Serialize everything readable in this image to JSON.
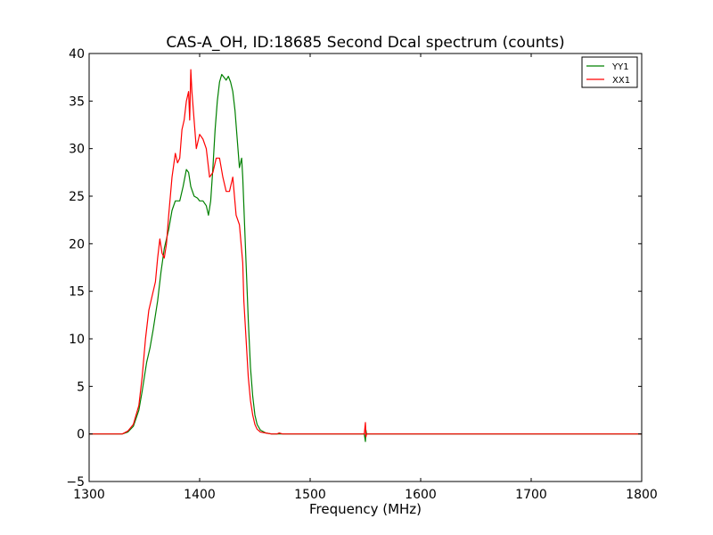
{
  "chart_data": {
    "type": "line",
    "title": "CAS-A_OH, ID:18685 Second Dcal spectrum (counts)",
    "xlabel": "Frequency (MHz)",
    "ylabel": "",
    "xlim": [
      1300,
      1800
    ],
    "ylim": [
      -5,
      40
    ],
    "xticks": [
      1300,
      1400,
      1500,
      1600,
      1700,
      1800
    ],
    "yticks": [
      -5,
      0,
      5,
      10,
      15,
      20,
      25,
      30,
      35,
      40
    ],
    "xtick_labels": [
      "1300",
      "1400",
      "1500",
      "1600",
      "1700",
      "1800"
    ],
    "ytick_labels": [
      "−5",
      "0",
      "5",
      "10",
      "15",
      "20",
      "25",
      "30",
      "35",
      "40"
    ],
    "grid": false,
    "legend_position": "top-right",
    "series": [
      {
        "name": "YY1",
        "color": "#008000",
        "x": [
          1300,
          1330,
          1335,
          1340,
          1345,
          1348,
          1352,
          1355,
          1358,
          1362,
          1365,
          1368,
          1372,
          1375,
          1378,
          1382,
          1385,
          1388,
          1390,
          1392,
          1395,
          1398,
          1400,
          1403,
          1406,
          1408,
          1410,
          1412,
          1414,
          1416,
          1418,
          1420,
          1422,
          1424,
          1426,
          1428,
          1430,
          1432,
          1434,
          1436,
          1438,
          1439,
          1440,
          1442,
          1444,
          1446,
          1448,
          1450,
          1452,
          1455,
          1460,
          1465,
          1470,
          1475,
          1480,
          1500,
          1549,
          1550,
          1550.5,
          1551,
          1552,
          1600,
          1650,
          1700,
          1750,
          1800
        ],
        "y": [
          0,
          0,
          0.2,
          0.8,
          2.5,
          4.5,
          7.5,
          9,
          11,
          14,
          17,
          19.5,
          21.5,
          23.5,
          24.5,
          24.5,
          26,
          27.8,
          27.5,
          26,
          25,
          24.8,
          24.5,
          24.5,
          24,
          23,
          24.5,
          28,
          32,
          35,
          37,
          37.8,
          37.5,
          37.2,
          37.6,
          37,
          36,
          34,
          31,
          28,
          29,
          27,
          24,
          18,
          12,
          7,
          4,
          2,
          1,
          0.4,
          0.1,
          0,
          0,
          0,
          0,
          0,
          0,
          -0.8,
          0.4,
          0,
          0,
          0,
          0,
          0,
          0,
          0
        ]
      },
      {
        "name": "XX1",
        "color": "#ff0000",
        "x": [
          1300,
          1330,
          1335,
          1340,
          1345,
          1348,
          1351,
          1354,
          1357,
          1360,
          1362,
          1364,
          1366,
          1368,
          1370,
          1372,
          1375,
          1378,
          1380,
          1382,
          1384,
          1386,
          1388,
          1390,
          1391,
          1392,
          1393,
          1395,
          1397,
          1400,
          1403,
          1406,
          1409,
          1412,
          1415,
          1418,
          1421,
          1424,
          1427,
          1430,
          1433,
          1436,
          1439,
          1440,
          1442,
          1444,
          1446,
          1448,
          1450,
          1452,
          1455,
          1460,
          1465,
          1470,
          1472,
          1475,
          1480,
          1500,
          1549,
          1550,
          1550.5,
          1551,
          1552,
          1600,
          1650,
          1700,
          1750,
          1800
        ],
        "y": [
          0,
          0,
          0.3,
          1,
          3,
          6,
          10,
          13,
          14.5,
          16,
          18.5,
          20.5,
          19,
          18.5,
          20,
          23,
          27,
          29.5,
          28.5,
          29,
          32,
          33,
          35,
          36,
          33,
          38.3,
          36,
          33,
          30,
          31.5,
          31,
          30,
          27,
          27.5,
          29,
          29,
          27,
          25.5,
          25.5,
          27,
          23,
          22,
          18,
          14,
          10,
          6,
          3.5,
          2,
          1,
          0.5,
          0.2,
          0.1,
          0,
          0,
          0.1,
          0,
          0,
          0,
          0,
          1.2,
          -0.3,
          0,
          0,
          0,
          0,
          0,
          0,
          0
        ]
      }
    ]
  }
}
